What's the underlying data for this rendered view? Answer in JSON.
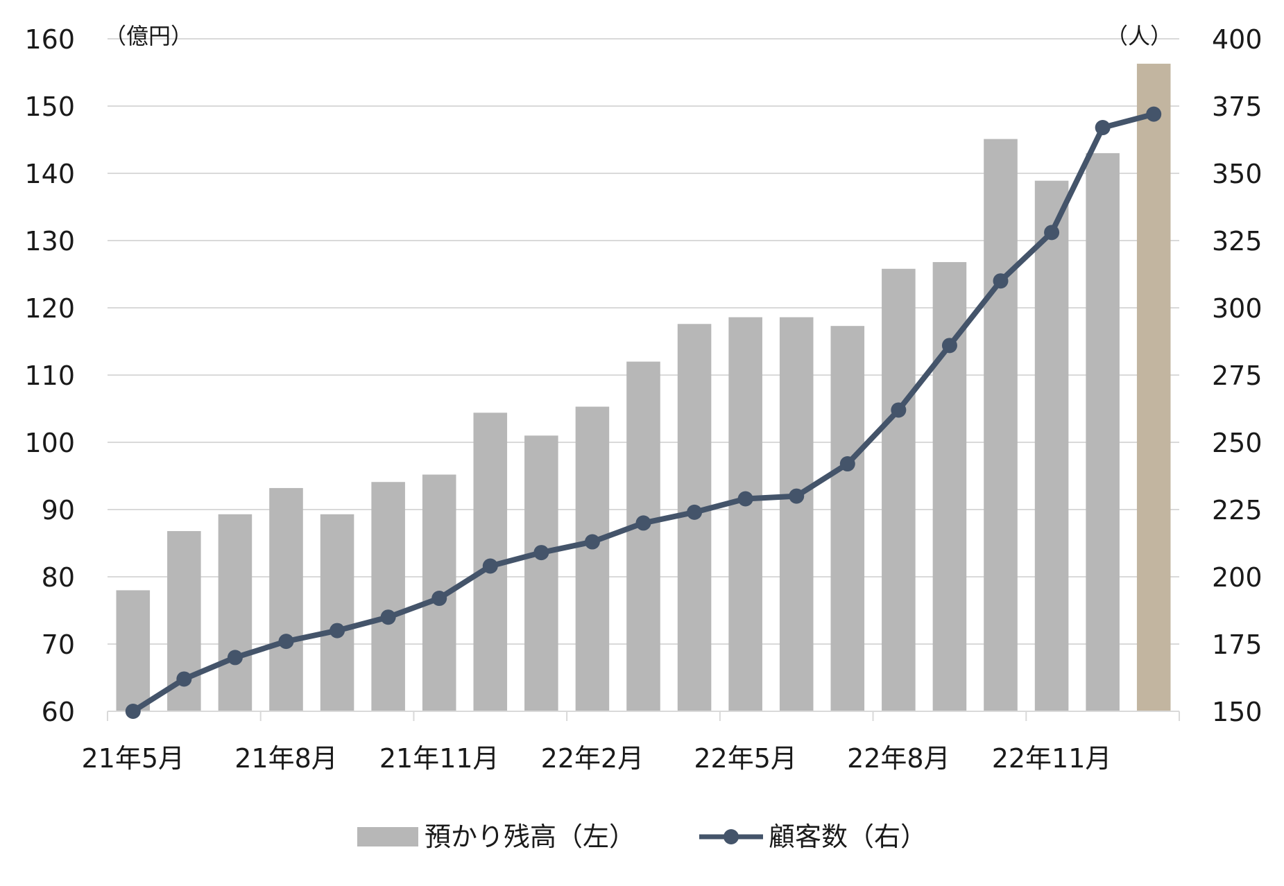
{
  "chart_data": {
    "type": "bar+line",
    "x_tick_labels": [
      "21年5月",
      "21年8月",
      "21年11月",
      "22年2月",
      "22年5月",
      "22年8月",
      "22年11月"
    ],
    "series": [
      {
        "name": "預かり残高（左）",
        "type": "bar",
        "axis": "left",
        "values": [
          78,
          86.8,
          89.3,
          93.2,
          89.3,
          94.1,
          95.2,
          104.4,
          101,
          105.3,
          112,
          117.6,
          118.6,
          118.6,
          117.3,
          125.8,
          126.8,
          145.1,
          138.9,
          143,
          156.3
        ],
        "color": "#b7b7b7",
        "highlight_last_color": "#c2b5a0"
      },
      {
        "name": "顧客数（右）",
        "type": "line",
        "axis": "right",
        "values": [
          150,
          162,
          170,
          176,
          180,
          185,
          192,
          204,
          209,
          213,
          220,
          224,
          229,
          230,
          242,
          262,
          286,
          310,
          328,
          367,
          372
        ],
        "color": "#44546a"
      }
    ],
    "y_left": {
      "unit": "（億円）",
      "min": 60,
      "max": 160,
      "ticks": [
        60,
        70,
        80,
        90,
        100,
        110,
        120,
        130,
        140,
        150,
        160
      ]
    },
    "y_right": {
      "unit": "（人）",
      "min": 150,
      "max": 400,
      "ticks": [
        150,
        175,
        200,
        225,
        250,
        275,
        300,
        325,
        350,
        375,
        400
      ]
    },
    "grid": true,
    "legend_position": "bottom"
  }
}
